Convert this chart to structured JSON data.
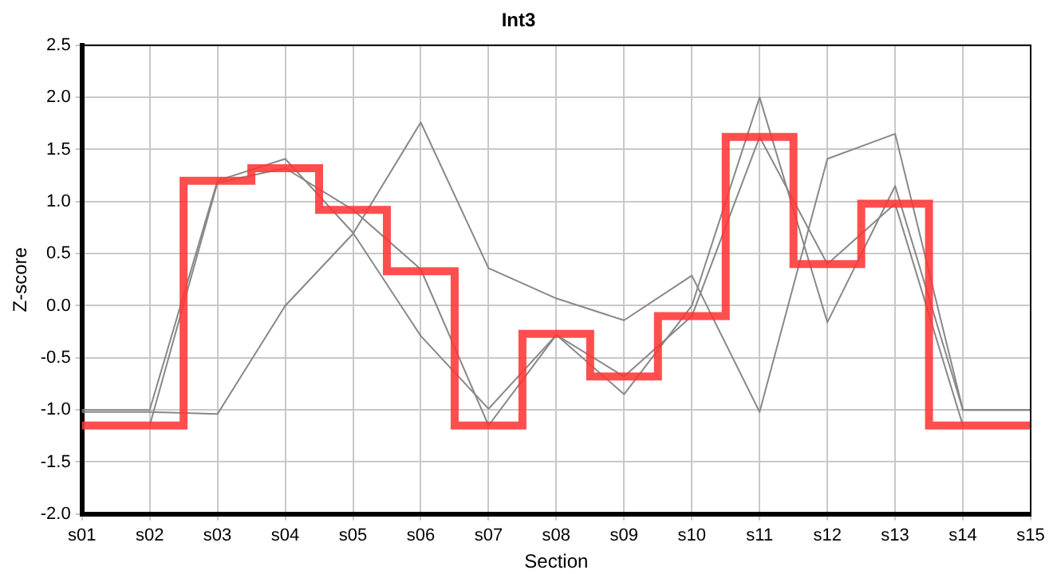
{
  "chart_data": {
    "type": "line",
    "title": "Int3",
    "xlabel": "Section",
    "ylabel": "Z-score",
    "categories": [
      "s01",
      "s02",
      "s03",
      "s04",
      "s05",
      "s06",
      "s07",
      "s08",
      "s09",
      "s10",
      "s11",
      "s12",
      "s13",
      "s14",
      "s15"
    ],
    "ylim": [
      -2.0,
      2.5
    ],
    "yticks": [
      {
        "value": -2.0,
        "label": "-2.0"
      },
      {
        "value": -1.5,
        "label": "-1.5"
      },
      {
        "value": -1.0,
        "label": "-1.0"
      },
      {
        "value": -0.5,
        "label": "-0.5"
      },
      {
        "value": 0,
        "label": "0.0"
      },
      {
        "value": 0.5,
        "label": "0.5"
      },
      {
        "value": 1.0,
        "label": "1.0"
      },
      {
        "value": 1.5,
        "label": "1.5"
      },
      {
        "value": 2.0,
        "label": "2.0"
      },
      {
        "value": 2.5,
        "label": "2.5"
      }
    ],
    "grid": true,
    "legend": false,
    "marker": "none",
    "line_style": "solid",
    "series": [
      {
        "type": "line",
        "color": "#888888",
        "values": [
          -1.02,
          -1.02,
          -1.04,
          0.0,
          0.69,
          1.76,
          0.36,
          0.07,
          -0.14,
          0.29,
          -1.02,
          1.41,
          1.65,
          -1.0,
          -1.0
        ]
      },
      {
        "type": "line",
        "color": "#888888",
        "values": [
          null,
          -1.15,
          1.18,
          1.32,
          0.92,
          0.35,
          -1.15,
          -0.28,
          -0.68,
          -0.1,
          1.62,
          0.4,
          0.98,
          -1.15,
          null
        ]
      },
      {
        "type": "line",
        "color": "#888888",
        "values": [
          -1.0,
          -1.0,
          1.2,
          1.41,
          0.7,
          -0.29,
          -0.99,
          -0.28,
          -0.85,
          0.0,
          2.0,
          -0.16,
          1.15,
          -1.0,
          -1.0
        ]
      },
      {
        "type": "step",
        "color": "#ff3333",
        "values": [
          -1.15,
          -1.15,
          1.2,
          1.32,
          0.92,
          0.33,
          -1.15,
          -0.27,
          -0.68,
          -0.1,
          1.62,
          0.4,
          0.98,
          -1.15,
          -1.15
        ]
      }
    ]
  }
}
